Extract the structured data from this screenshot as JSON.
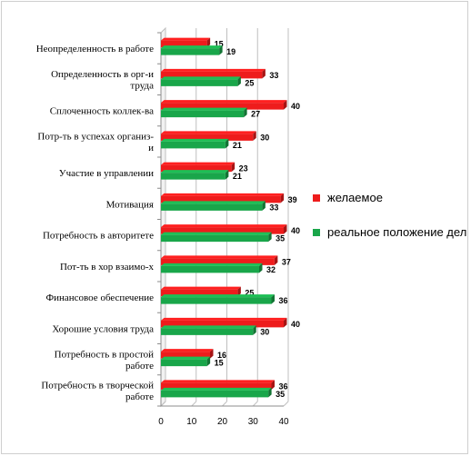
{
  "chart_data": {
    "type": "bar",
    "orientation": "horizontal",
    "categories": [
      [
        "Неопределенность в работе"
      ],
      [
        "Определенность в орг-и",
        "труда"
      ],
      [
        "Сплоченность коллек-ва"
      ],
      [
        "Потр-ть в успехах организ-",
        "и"
      ],
      [
        "Участие в управлении"
      ],
      [
        "Мотивация"
      ],
      [
        "Потребность в авторитете"
      ],
      [
        "Пот-ть в хор взаимо-х"
      ],
      [
        "Финансовое обеспечение"
      ],
      [
        "Хорошие условия труда"
      ],
      [
        "Потребность в простой",
        "работе"
      ],
      [
        "Потребность в творческой",
        "работе"
      ]
    ],
    "series": [
      {
        "name": "желаемое",
        "color": "#ee1c1c",
        "values": [
          15,
          33,
          40,
          30,
          23,
          39,
          40,
          37,
          25,
          40,
          16,
          36
        ]
      },
      {
        "name": "реальное положение дел",
        "color": "#19a64a",
        "values": [
          19,
          25,
          27,
          21,
          21,
          33,
          35,
          32,
          36,
          30,
          15,
          35
        ]
      }
    ],
    "xlim": [
      0,
      40
    ],
    "xticks": [
      0,
      10,
      20,
      30,
      40
    ],
    "grid": "vertical",
    "legend_position": "right",
    "title": "",
    "xlabel": "",
    "ylabel": ""
  },
  "legend": {
    "items": [
      {
        "label": "желаемое",
        "color": "#ee1c1c"
      },
      {
        "label": "реальное положение дел",
        "color": "#19a64a"
      }
    ]
  }
}
